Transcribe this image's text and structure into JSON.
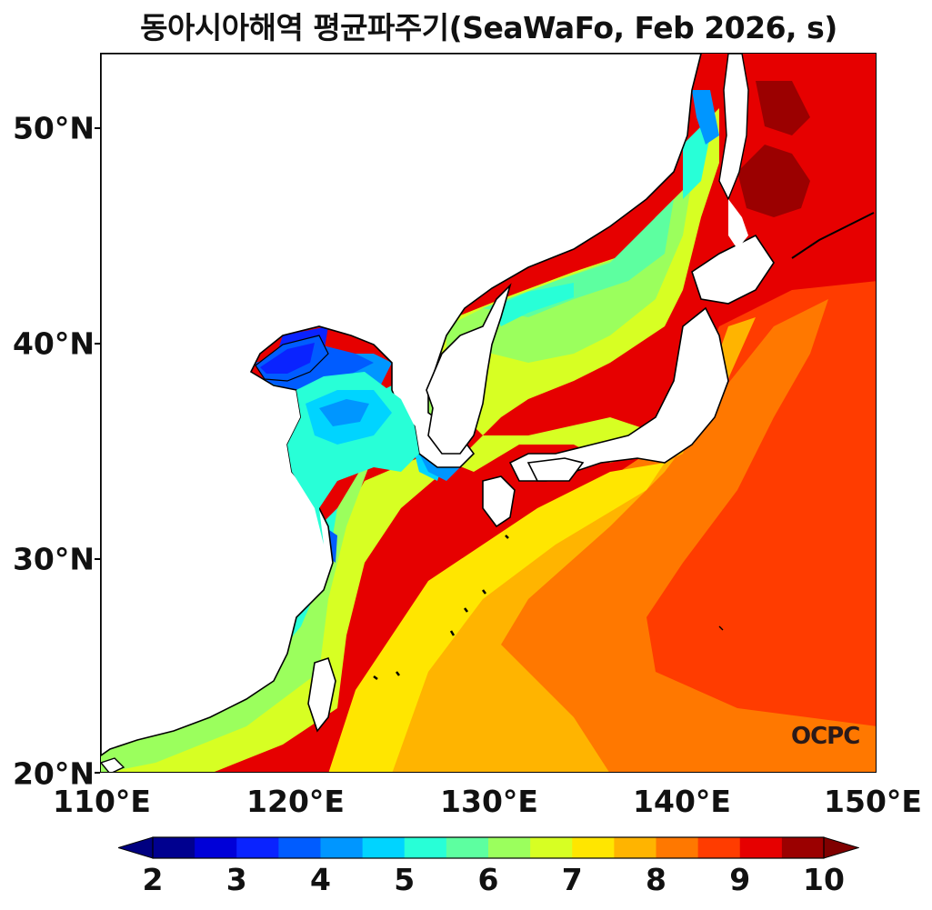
{
  "title": "동아시아해역 평균파주기(SeaWaFo, Feb 2026, s)",
  "watermark": "OCPC",
  "lat_labels": [
    "50°N",
    "40°N",
    "30°N",
    "20°N"
  ],
  "lon_labels": [
    "110°E",
    "120°E",
    "130°E",
    "140°E",
    "150°E"
  ],
  "colorbar": {
    "labels": [
      "2",
      "3",
      "4",
      "5",
      "6",
      "7",
      "8",
      "9",
      "10"
    ],
    "colors": [
      "#00008f",
      "#0000d8",
      "#0a23ff",
      "#005cff",
      "#0096ff",
      "#00d4ff",
      "#28ffd7",
      "#5dffa0",
      "#9bff5d",
      "#d7ff23",
      "#ffe600",
      "#ffb400",
      "#ff7800",
      "#ff3c00",
      "#e60000",
      "#9b0000"
    ],
    "under_color": "#000080",
    "over_color": "#800000",
    "range": [
      2,
      10
    ],
    "interval": 0.5
  },
  "map_extent": {
    "lon": [
      110,
      150
    ],
    "lat": [
      20,
      53.4
    ]
  }
}
